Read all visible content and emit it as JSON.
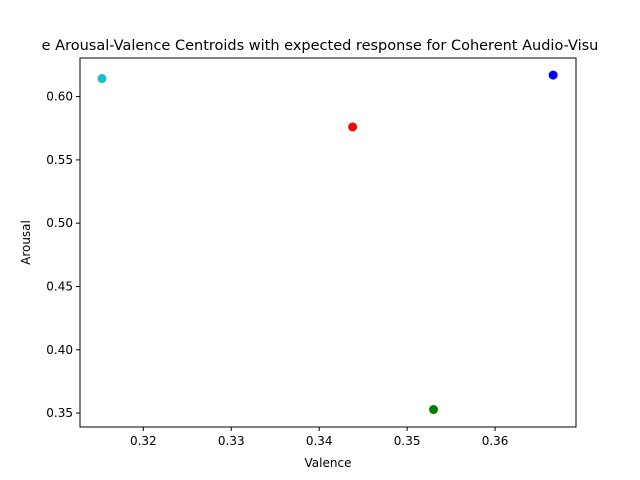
{
  "chart_data": {
    "type": "scatter",
    "title": "e Arousal-Valence Centroids with expected response for Coherent Audio-Visu",
    "xlabel": "Valence",
    "ylabel": "Arousal",
    "xlim": [
      0.3128,
      0.3692
    ],
    "ylim": [
      0.339,
      0.6305
    ],
    "xticks": [
      "0.32",
      "0.33",
      "0.34",
      "0.35",
      "0.36"
    ],
    "xtick_values": [
      0.32,
      0.33,
      0.34,
      0.35,
      0.36
    ],
    "yticks": [
      "0.35",
      "0.40",
      "0.45",
      "0.50",
      "0.55",
      "0.60"
    ],
    "ytick_values": [
      0.35,
      0.4,
      0.45,
      0.5,
      0.55,
      0.6
    ],
    "grid": false,
    "points": [
      {
        "x": 0.3153,
        "y": 0.6143,
        "color": "#17becf"
      },
      {
        "x": 0.3438,
        "y": 0.576,
        "color": "#ff0000"
      },
      {
        "x": 0.353,
        "y": 0.3528,
        "color": "#008000"
      },
      {
        "x": 0.3666,
        "y": 0.617,
        "color": "#0000ff"
      }
    ]
  }
}
